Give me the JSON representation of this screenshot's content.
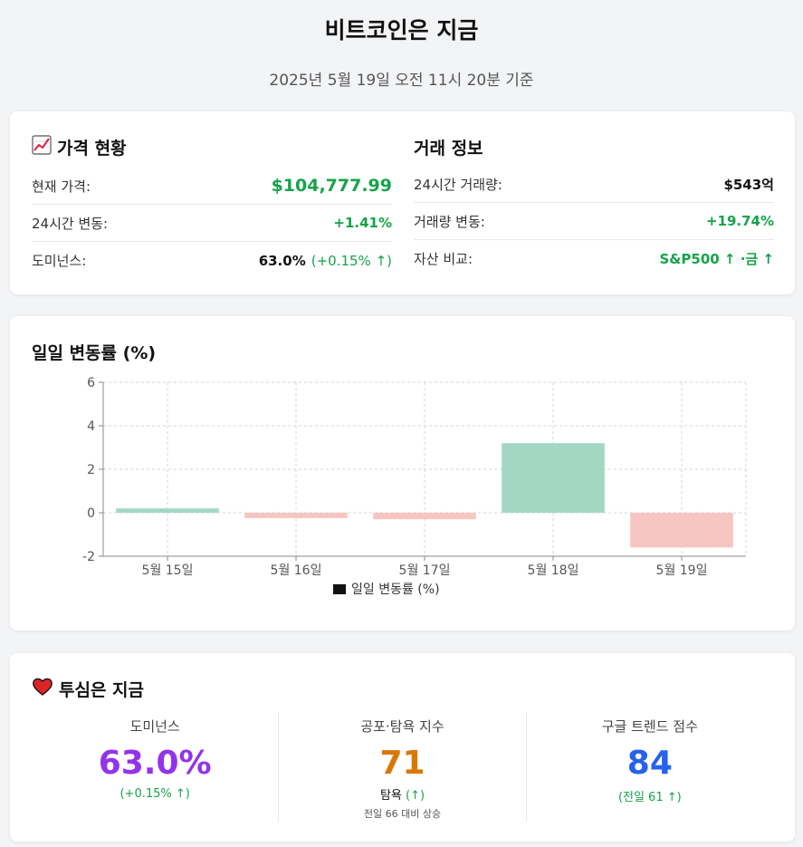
{
  "header": {
    "title": "비트코인은 지금",
    "subtitle": "2025년 5월 19일 오전 11시 20분 기준"
  },
  "price": {
    "heading": "가격 현황",
    "icon": "chart-increasing-icon",
    "rows": [
      {
        "label": "현재 가격:",
        "value": "$104,777.99"
      },
      {
        "label": "24시간 변동:",
        "value": "+1.41%"
      },
      {
        "label": "도미넌스:",
        "value": "63.0%",
        "sub": "(+0.15% ↑)"
      }
    ]
  },
  "trade": {
    "heading": "거래 정보",
    "rows": [
      {
        "label": "24시간 거래량:",
        "value": "$543억"
      },
      {
        "label": "거래량 변동:",
        "value": "+19.74%"
      },
      {
        "label": "자산 비교:",
        "value": "S&P500 ↑ ·금 ↑"
      }
    ]
  },
  "chart": {
    "heading": "일일 변동률 (%)"
  },
  "chart_data": {
    "type": "bar",
    "title": "일일 변동률 (%)",
    "categories": [
      "5월 15일",
      "5월 16일",
      "5월 17일",
      "5월 18일",
      "5월 19일"
    ],
    "series": [
      {
        "name": "일일 변동률 (%)",
        "values": [
          0.2,
          -0.25,
          -0.3,
          3.2,
          -1.6
        ]
      }
    ],
    "ylim": [
      -2,
      6
    ],
    "yticks": [
      "-2",
      "0",
      "2",
      "4",
      "6"
    ],
    "grid": true,
    "legend": "bottom",
    "colors": {
      "positive": "#a3d7c4",
      "negative": "#f7c6c2"
    }
  },
  "sentiment": {
    "heading": "투심은 지금",
    "icon": "heart-icon",
    "metrics": [
      {
        "label": "도미넌스",
        "value": "63.0%",
        "sub": "(+0.15% ↑)",
        "color": "#9333ea"
      },
      {
        "label": "공포·탐욕 지수",
        "value": "71",
        "sub": "탐욕",
        "sub_arrow": "(↑)",
        "note": "전일 66 대비 상승",
        "color": "#d97706"
      },
      {
        "label": "구글 트렌드 점수",
        "value": "84",
        "sub": "(전일 61 ↑)",
        "color": "#2563eb"
      }
    ]
  }
}
